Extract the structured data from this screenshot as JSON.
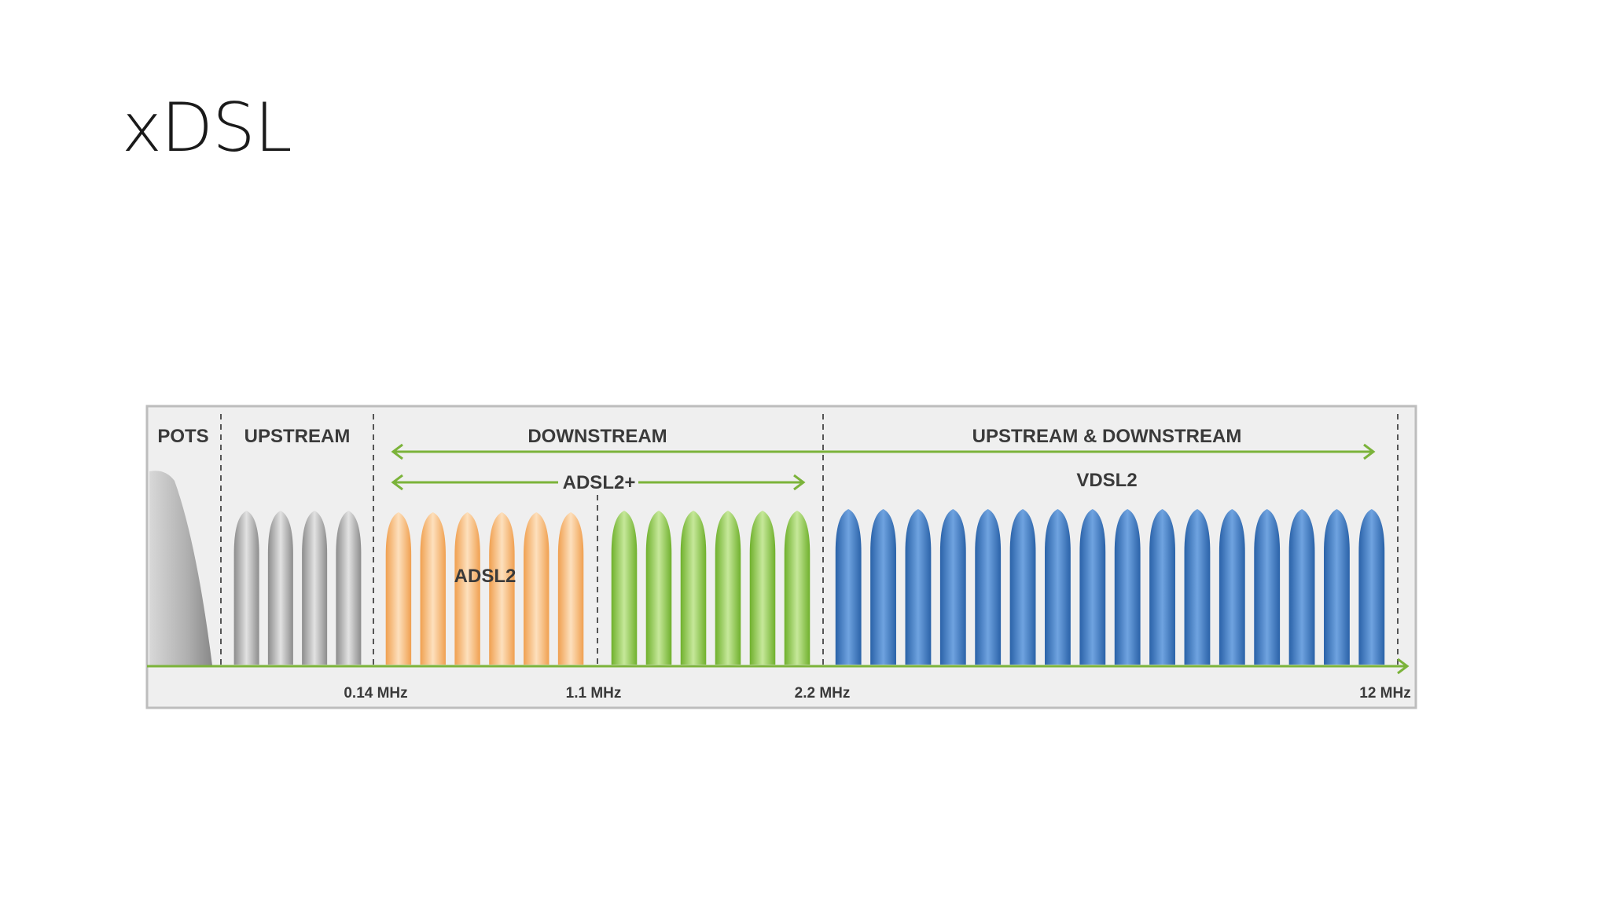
{
  "slide": {
    "title": "xDSL"
  },
  "diagram": {
    "bands": [
      {
        "label": "POTS"
      },
      {
        "label": "UPSTREAM"
      },
      {
        "label": "DOWNSTREAM"
      },
      {
        "label": "UPSTREAM & DOWNSTREAM"
      }
    ],
    "standards": {
      "adsl2plus": "ADSL2+",
      "adsl2": "ADSL2",
      "vdsl2": "VDSL2"
    },
    "frequencies": [
      "0.14 MHz",
      "1.1 MHz",
      "2.2 MHz",
      "12 MHz"
    ],
    "carrier_groups": [
      {
        "name": "pots",
        "count": 1,
        "color": "#a8a8a8"
      },
      {
        "name": "upstream",
        "count": 4,
        "color": "#9b9b9b"
      },
      {
        "name": "adsl2-downstream",
        "count": 6,
        "color": "#f2a65a"
      },
      {
        "name": "adsl2plus-downstream",
        "count": 6,
        "color": "#7dbb3a"
      },
      {
        "name": "vdsl2",
        "count": 16,
        "color": "#2f6db5"
      }
    ],
    "colors": {
      "panel_bg": "#efefef",
      "panel_border": "#bdbdbd",
      "arrow": "#7bb33a",
      "baseline": "#7bb33a",
      "divider": "#555555"
    }
  }
}
